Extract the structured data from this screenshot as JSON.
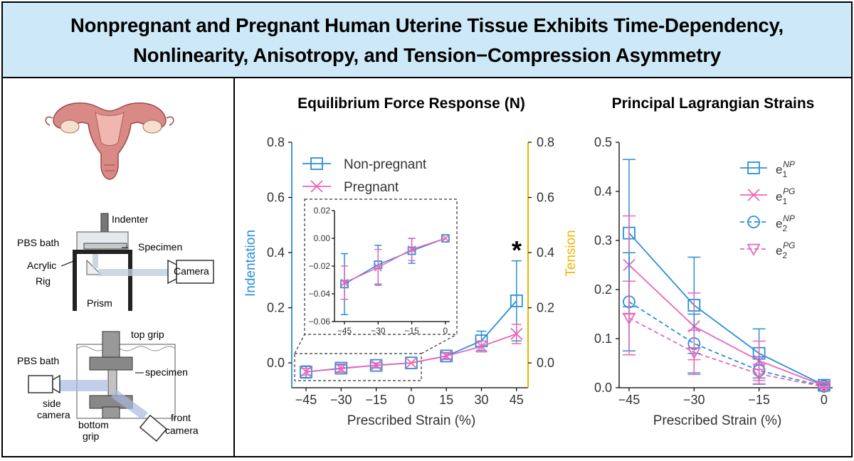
{
  "title": {
    "line1": "Nonpregnant and Pregnant Human Uterine Tissue Exhibits Time-Dependency,",
    "line2": "Nonlinearity, Anisotropy, and Tension−Compression Asymmetry"
  },
  "setup_labels": {
    "indenter": "Indenter",
    "pbs_bath_1": "PBS bath",
    "specimen_1": "Specimen",
    "acrylic": "Acrylic",
    "rig": "Rig",
    "camera": "Camera",
    "prism": "Prism",
    "top_grip": "top grip",
    "pbs_bath_2": "PBS bath",
    "specimen_2": "specimen",
    "side_camera_1": "side",
    "side_camera_2": "camera",
    "bottom_grip_1": "bottom",
    "bottom_grip_2": "grip",
    "front_camera_1": "front",
    "front_camera_2": "camera"
  },
  "colors": {
    "non_pregnant": "#2c8fd6",
    "pregnant": "#e868b8",
    "tension_axis": "#f0b400",
    "title_bg": "#cde8f7"
  },
  "chart_data": [
    {
      "type": "line",
      "title": "Equilibrium Force Response (N)",
      "xlabel": "Prescribed Strain (%)",
      "ylabel_left": "Indentation",
      "ylabel_right": "Tension",
      "x": [
        -45,
        -30,
        -15,
        0,
        15,
        30,
        45
      ],
      "xticks": [
        "−45",
        "−30",
        "−15",
        "0",
        "15",
        "30",
        "45"
      ],
      "ylim": [
        -0.09,
        0.8
      ],
      "yticks": [
        "0.0",
        "0.2",
        "0.4",
        "0.6",
        "0.8"
      ],
      "yticks_right": [
        "0.0",
        "0.2",
        "0.4",
        "0.6",
        "0.8"
      ],
      "legend_position": "top-left",
      "annotation": "*",
      "series": [
        {
          "name": "Non-pregnant",
          "marker": "square",
          "values": [
            -0.033,
            -0.019,
            -0.009,
            0.0,
            0.025,
            0.08,
            0.225
          ],
          "err": [
            0.022,
            0.014,
            0.009,
            0.0,
            0.012,
            0.035,
            0.145
          ]
        },
        {
          "name": "Pregnant",
          "marker": "x",
          "values": [
            -0.032,
            -0.021,
            -0.008,
            0.0,
            0.025,
            0.06,
            0.105
          ],
          "err": [
            0.012,
            0.013,
            0.008,
            0.0,
            0.01,
            0.02,
            0.035
          ]
        }
      ],
      "inset": {
        "x": [
          -45,
          -30,
          -15,
          0
        ],
        "xticks": [
          "−45",
          "−30",
          "−15",
          "0"
        ],
        "ylim": [
          -0.06,
          0.02
        ],
        "yticks": [
          "0.02",
          "0.00",
          "−0.02",
          "−0.04",
          "−0.06"
        ]
      }
    },
    {
      "type": "line",
      "title": "Principal Lagrangian Strains",
      "xlabel": "Prescribed Strain (%)",
      "x": [
        -45,
        -30,
        -15,
        0
      ],
      "xticks": [
        "−45",
        "−30",
        "−15",
        "0"
      ],
      "ylim": [
        0.0,
        0.5
      ],
      "yticks": [
        "0.0",
        "0.1",
        "0.2",
        "0.3",
        "0.4",
        "0.5"
      ],
      "legend_position": "top-right",
      "series": [
        {
          "name": "e1NP",
          "legend_base": "e",
          "legend_sub": "1",
          "legend_sup": "NP",
          "color": "#2c8fd6",
          "dash": false,
          "marker": "square",
          "values": [
            0.315,
            0.168,
            0.07,
            0.005
          ],
          "err": [
            0.15,
            0.098,
            0.05,
            0.004
          ]
        },
        {
          "name": "e1PG",
          "legend_base": "e",
          "legend_sub": "1",
          "legend_sup": "PG",
          "color": "#e868b8",
          "dash": false,
          "marker": "x",
          "values": [
            0.25,
            0.125,
            0.055,
            0.004
          ],
          "err": [
            0.1,
            0.068,
            0.04,
            0.003
          ]
        },
        {
          "name": "e2NP",
          "legend_base": "e",
          "legend_sub": "2",
          "legend_sup": "NP",
          "color": "#2c8fd6",
          "dash": true,
          "marker": "circle",
          "values": [
            0.175,
            0.09,
            0.035,
            0.003
          ],
          "err": [
            0.1,
            0.06,
            0.028,
            0.003
          ]
        },
        {
          "name": "e2PG",
          "legend_base": "e",
          "legend_sub": "2",
          "legend_sup": "PG",
          "color": "#e868b8",
          "dash": true,
          "marker": "triangle-down",
          "values": [
            0.142,
            0.072,
            0.028,
            0.002
          ],
          "err": [
            0.075,
            0.045,
            0.02,
            0.002
          ]
        }
      ]
    }
  ]
}
